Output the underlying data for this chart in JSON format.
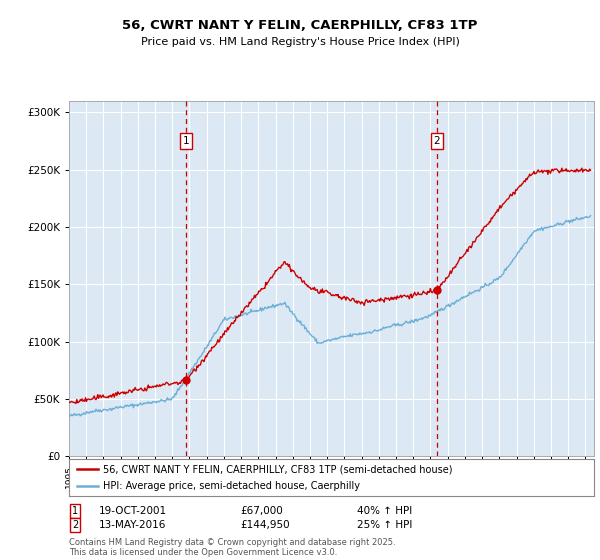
{
  "title": "56, CWRT NANT Y FELIN, CAERPHILLY, CF83 1TP",
  "subtitle": "Price paid vs. HM Land Registry's House Price Index (HPI)",
  "ylim": [
    0,
    310000
  ],
  "xlim_start": 1995.0,
  "xlim_end": 2025.5,
  "sale1_date": 2001.8,
  "sale1_price": 67000,
  "sale1_label": "1",
  "sale2_date": 2016.37,
  "sale2_price": 144950,
  "sale2_label": "2",
  "property_color": "#cc0000",
  "hpi_color": "#6baed6",
  "bg_color": "#dce9f5",
  "legend_property": "56, CWRT NANT Y FELIN, CAERPHILLY, CF83 1TP (semi-detached house)",
  "legend_hpi": "HPI: Average price, semi-detached house, Caerphilly",
  "footer": "Contains HM Land Registry data © Crown copyright and database right 2025.\nThis data is licensed under the Open Government Licence v3.0."
}
